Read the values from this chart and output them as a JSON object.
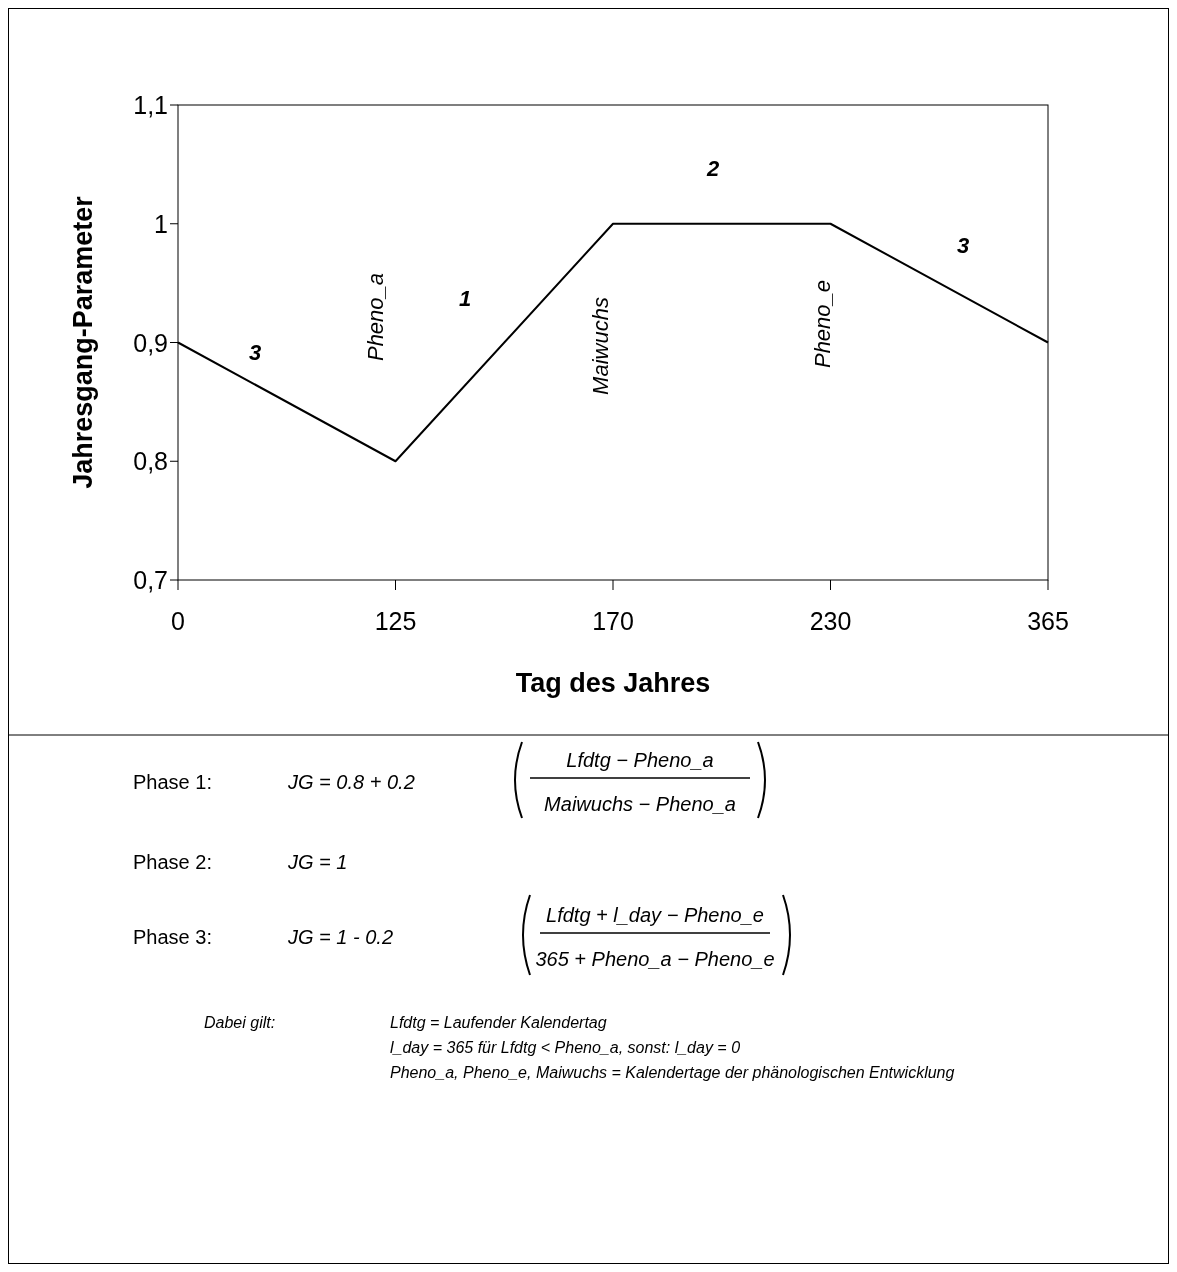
{
  "chart_data": {
    "type": "line",
    "categories": [
      "0",
      "125",
      "170",
      "230",
      "365"
    ],
    "series": [
      {
        "color": "#000000",
        "values": [
          0.9,
          0.8,
          1,
          1,
          0.9
        ]
      }
    ],
    "ylim": [
      0.7,
      1.1
    ],
    "yticks": [
      {
        "value": 0.7,
        "label": "0,7"
      },
      {
        "value": 0.8,
        "label": "0,8"
      },
      {
        "value": 0.9,
        "label": "0,9"
      },
      {
        "value": 1,
        "label": "1"
      },
      {
        "value": 1.1,
        "label": "1,1"
      }
    ],
    "xlabel": "Tag des Jahres",
    "ylabel": "Jahresgang-Parameter",
    "grid": false,
    "annotations": [
      "3",
      "1",
      "2",
      "3",
      "Pheno_a",
      "Maiwuchs",
      "Pheno_e",
      "Phase 1:",
      "JG = 0.8 + 0.2",
      "Lfdtg − Pheno_a",
      "Maiwuchs − Pheno_a",
      "Phase 2:",
      "JG = 1",
      "Phase 3:",
      "JG = 1 - 0.2",
      "Lfdtg + l_day − Pheno_e",
      "365 + Pheno_a − Pheno_e",
      "Dabei gilt:",
      "Lfdtg = Laufender Kalendertag",
      "l_day = 365 für Lfdtg < Pheno_a, sonst: l_day = 0",
      "Pheno_a, Pheno_e, Maiwuchs = Kalendertage der phänologischen Entwicklung"
    ]
  }
}
